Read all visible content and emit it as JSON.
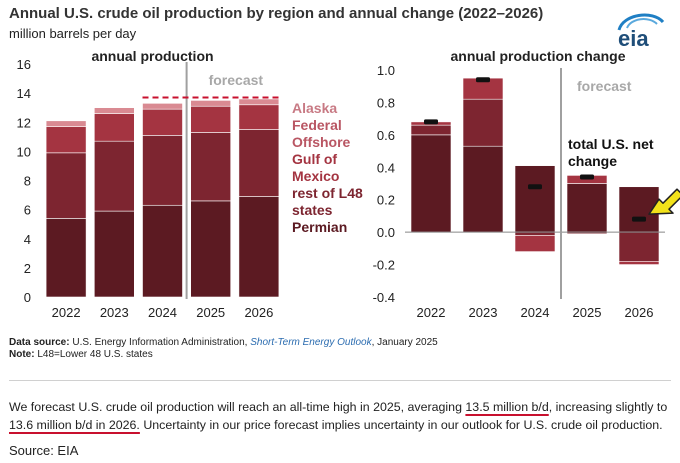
{
  "header": {
    "title": "Annual U.S. crude oil production by region and annual change (2022–2026)",
    "unit": "million barrels per day",
    "logo_text": "eia"
  },
  "chart_data": [
    {
      "type": "bar",
      "stacked": true,
      "title": "annual production",
      "ylabel": "million barrels per day",
      "ylim": [
        0,
        16
      ],
      "yticks": [
        0,
        2,
        4,
        6,
        8,
        10,
        12,
        14,
        16
      ],
      "categories": [
        "2022",
        "2023",
        "2024",
        "2025",
        "2026"
      ],
      "forecast_label": "forecast",
      "forecast_start": "2025",
      "reference_line": {
        "value": 13.7,
        "style": "dashed"
      },
      "series": [
        {
          "name": "Permian",
          "color": "#5c1a22",
          "values": [
            5.4,
            5.9,
            6.3,
            6.6,
            6.9
          ]
        },
        {
          "name": "rest of L48 states",
          "color": "#7d2530",
          "values": [
            4.5,
            4.8,
            4.8,
            4.7,
            4.6
          ]
        },
        {
          "name": "Gulf of Mexico",
          "color": "#a43441",
          "values": [
            1.8,
            1.9,
            1.8,
            1.8,
            1.7
          ]
        },
        {
          "name": "Federal Offshore",
          "color": "#b95663",
          "values": [
            0.0,
            0.0,
            0.0,
            0.0,
            0.0
          ]
        },
        {
          "name": "Alaska",
          "color": "#d98a92",
          "values": [
            0.4,
            0.4,
            0.4,
            0.4,
            0.4
          ]
        }
      ],
      "legend_labels": [
        "Alaska",
        "Federal",
        "Offshore",
        "Gulf of",
        "Mexico",
        "rest of L48",
        "states",
        "Permian"
      ]
    },
    {
      "type": "bar",
      "stacked": true,
      "title": "annual production change",
      "ylim": [
        -0.4,
        1.0
      ],
      "yticks": [
        "1.0",
        "0.8",
        "0.6",
        "0.4",
        "0.2",
        "0.0",
        "-0.2",
        "-0.4"
      ],
      "categories": [
        "2022",
        "2023",
        "2024",
        "2025",
        "2026"
      ],
      "forecast_label": "forecast",
      "forecast_start": "2025",
      "series": [
        {
          "name": "Permian",
          "color": "#5c1a22",
          "values": [
            0.6,
            0.53,
            0.41,
            0.3,
            0.28
          ]
        },
        {
          "name": "rest of L48 states",
          "color": "#7d2530",
          "values": [
            0.06,
            0.29,
            -0.02,
            -0.01,
            -0.18
          ]
        },
        {
          "name": "Gulf of Mexico",
          "color": "#a43441",
          "values": [
            0.02,
            0.13,
            -0.1,
            0.05,
            -0.02
          ]
        },
        {
          "name": "Alaska",
          "color": "#d98a92",
          "values": [
            0.0,
            0.0,
            0.0,
            0.0,
            0.0
          ]
        }
      ],
      "net_change": [
        0.68,
        0.94,
        0.28,
        0.34,
        0.08
      ],
      "net_label": "total U.S. net change",
      "net_label_lines": [
        "total U.S. net",
        "change"
      ],
      "highlight_category": "2026"
    }
  ],
  "footer": {
    "source_label": "Data source:",
    "source_text": " U.S. Energy Information Administration, ",
    "source_pub": "Short-Term Energy Outlook",
    "source_date": ", January 2025",
    "note_label": "Note:",
    "note_text": " L48=Lower 48 U.S. states"
  },
  "body": {
    "p1": "We forecast U.S. crude oil production will reach an all-time high in 2025, averaging ",
    "h1": "13.5 million b/d",
    "p2": ", increasing slightly to ",
    "h2": "13.6 million b/d in 2026.",
    "p3": " Uncertainty in our price forecast implies uncertainty in our outlook for U.S. crude oil production."
  },
  "source_line": "Source: EIA",
  "colors": {
    "accent": "#a43441",
    "highlight": "#f2e21a",
    "underline": "#c8102e",
    "forecast_line": "#a0a0a0",
    "forecast_text": "#a8a8a8"
  }
}
